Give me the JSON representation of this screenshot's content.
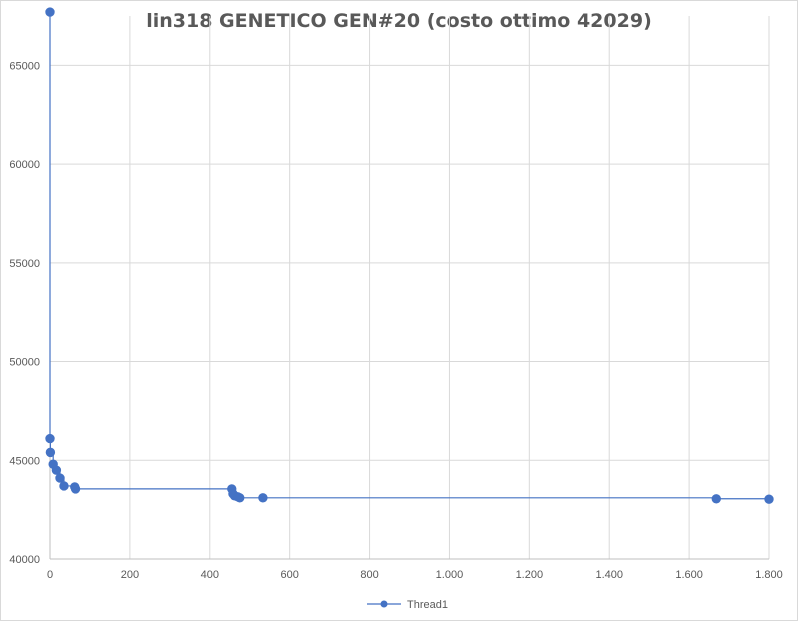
{
  "chart_data": {
    "type": "line",
    "title": "lin318 GENETICO GEN#20 (costo ottimo 42029)",
    "xlabel": "",
    "ylabel": "",
    "xlim": [
      0,
      1800
    ],
    "ylim": [
      40000,
      67500
    ],
    "x_ticks": [
      0,
      200,
      400,
      600,
      800,
      1000,
      1200,
      1400,
      1600,
      1800
    ],
    "x_tick_labels": [
      "0",
      "200",
      "400",
      "600",
      "800",
      "1.000",
      "1.200",
      "1.400",
      "1.600",
      "1.800"
    ],
    "y_ticks": [
      40000,
      45000,
      50000,
      55000,
      60000,
      65000
    ],
    "y_tick_labels": [
      "40000",
      "45000",
      "50000",
      "55000",
      "60000",
      "65000"
    ],
    "grid": true,
    "legend_position": "bottom",
    "color": "#4472c4",
    "step": true,
    "series": [
      {
        "name": "Thread1",
        "x": [
          0,
          0,
          1,
          8,
          16,
          25,
          35,
          62,
          64,
          455,
          458,
          462,
          470,
          475,
          533,
          1668,
          1800
        ],
        "y": [
          67700,
          46100,
          45400,
          44800,
          44500,
          44100,
          43700,
          43650,
          43550,
          43550,
          43300,
          43200,
          43150,
          43100,
          43100,
          43050,
          43030
        ]
      }
    ]
  }
}
